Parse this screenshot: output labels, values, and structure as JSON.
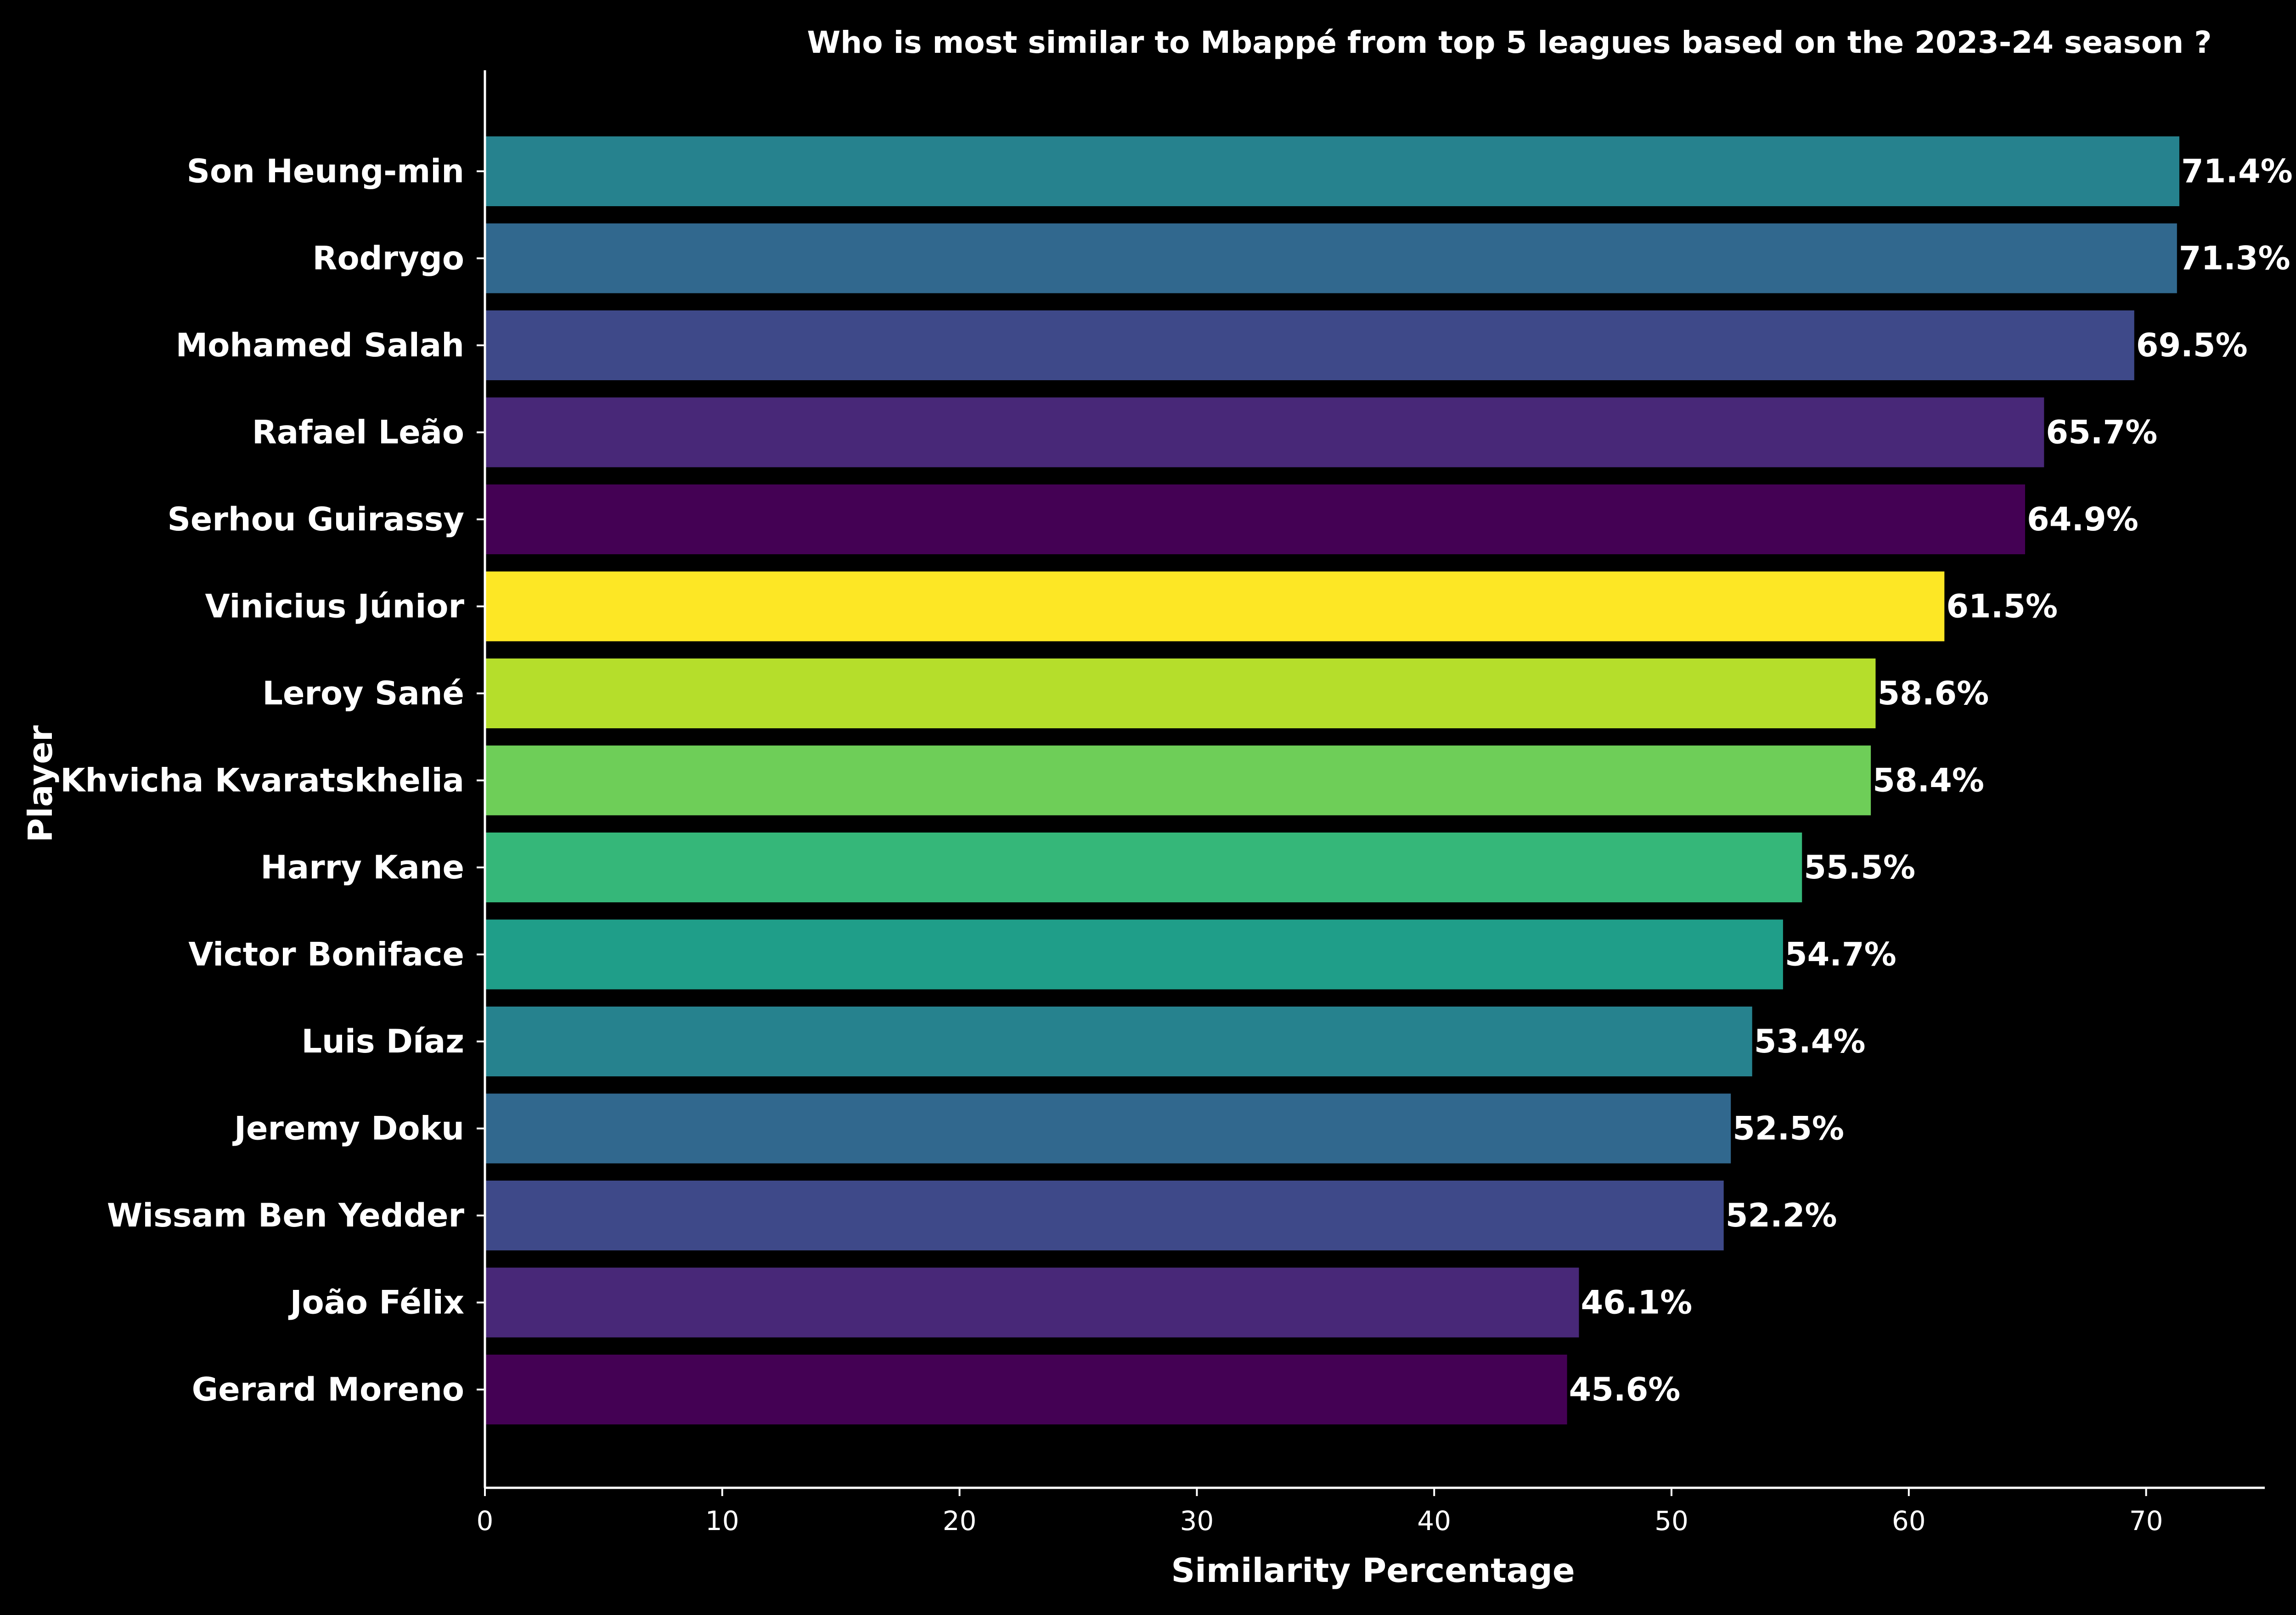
{
  "chart_data": {
    "type": "bar",
    "orientation": "horizontal",
    "title": "Who is most similar to Mbappé from top 5 leagues based on the 2023-24 season ?",
    "xlabel": "Similarity Percentage",
    "ylabel": "Player",
    "xlim": [
      0,
      75
    ],
    "x_ticks": [
      "0",
      "10",
      "20",
      "30",
      "40",
      "50",
      "60",
      "70"
    ],
    "grid": false,
    "background": "#000000",
    "text_color": "#ffffff",
    "value_suffix": "%",
    "categories": [
      "Son Heung-min",
      "Rodrygo",
      "Mohamed Salah",
      "Rafael Leão",
      "Serhou Guirassy",
      "Vinicius Júnior",
      "Leroy Sané",
      "Khvicha Kvaratskhelia",
      "Harry Kane",
      "Victor Boniface",
      "Luis Díaz",
      "Jeremy Doku",
      "Wissam Ben Yedder",
      "João Félix",
      "Gerard Moreno"
    ],
    "values": [
      71.4,
      71.3,
      69.5,
      65.7,
      64.9,
      61.5,
      58.6,
      58.4,
      55.5,
      54.7,
      53.4,
      52.5,
      52.2,
      46.1,
      45.6
    ],
    "data_labels": [
      "71.4%",
      "71.3%",
      "69.5%",
      "65.7%",
      "64.9%",
      "61.5%",
      "58.6%",
      "58.4%",
      "55.5%",
      "54.7%",
      "53.4%",
      "52.5%",
      "52.2%",
      "46.1%",
      "45.6%"
    ],
    "colors": [
      "#26828e",
      "#31688e",
      "#3e4989",
      "#482878",
      "#440154",
      "#fde725",
      "#b5de2b",
      "#6ece58",
      "#35b779",
      "#1f9e89",
      "#26828e",
      "#31688e",
      "#3e4989",
      "#482878",
      "#440154"
    ]
  }
}
